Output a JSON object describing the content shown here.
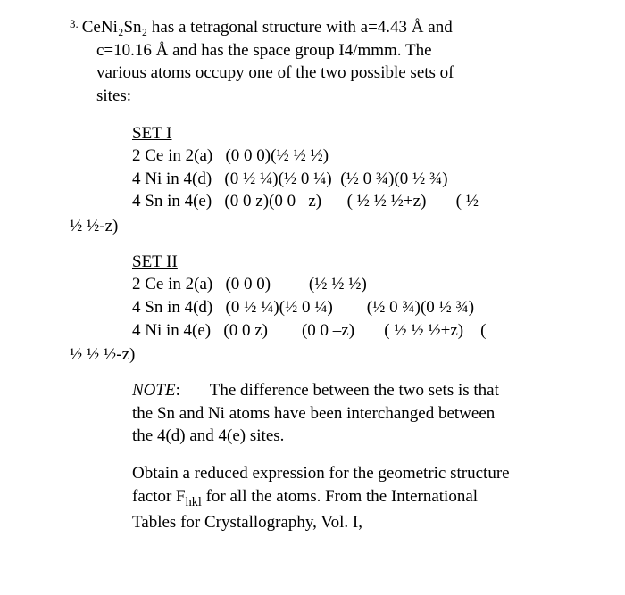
{
  "problem": {
    "number": "3.",
    "intro_line1": "CeNi₂Sn₂ has a tetragonal structure with a=4.43 Å and",
    "intro_line2": "c=10.16 Å and has the space group I4/mmm.  The",
    "intro_line3": "various atoms occupy one of the two possible sets of",
    "intro_line4": "sites:"
  },
  "set1": {
    "title": "SET I",
    "line1": "2 Ce in 2(a)   (0 0 0)(½ ½ ½)",
    "line2": "4 Ni in 4(d)   (0 ½ ¼)(½ 0 ¼)  (½ 0 ¾)(0 ½ ¾)",
    "line3": "4 Sn in 4(e)   (0 0 z)(0 0 –z)      ( ½ ½ ½+z)       ( ½",
    "wrap": "½ ½-z)"
  },
  "set2": {
    "title": "SET II",
    "line1": "2 Ce in 2(a)   (0 0 0)         (½ ½ ½)",
    "line2": "4 Sn in 4(d)   (0 ½ ¼)(½ 0 ¼)        (½ 0 ¾)(0 ½ ¾)",
    "line3": "4 Ni in 4(e)   (0 0 z)        (0 0 –z)       ( ½ ½ ½+z)    (",
    "wrap": "½ ½ ½-z)"
  },
  "note": {
    "label": "NOTE",
    "text1": ":       The difference between the two sets is that",
    "text2": "the Sn and Ni atoms have been interchanged between",
    "text3": "the 4(d) and 4(e) sites."
  },
  "obtain": {
    "line1": "Obtain a reduced expression for the geometric structure",
    "line2_a": "factor F",
    "line2_sub": "hkl",
    "line2_b": " for all the atoms.  From the International",
    "line3": "Tables for Crystallography, Vol. I,"
  }
}
